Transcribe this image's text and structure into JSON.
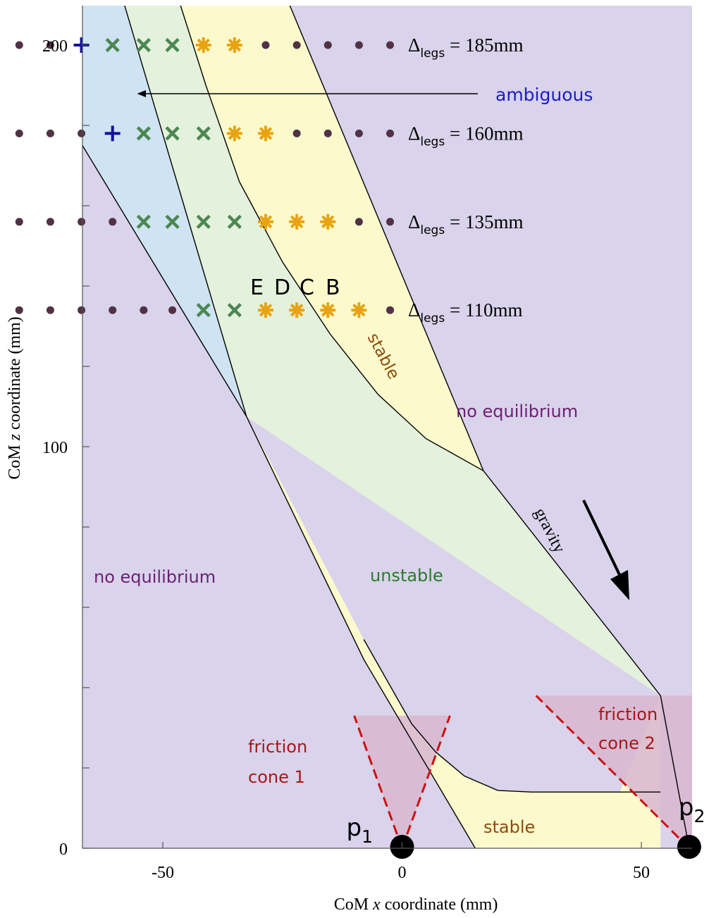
{
  "chart_data": {
    "type": "scatter",
    "xlabel_prefix": "CoM ",
    "xlabel_var": "x",
    "xlabel_suffix": " coordinate (mm)",
    "ylabel_prefix": "CoM ",
    "ylabel_var": "z",
    "ylabel_suffix": " coordinate (mm)",
    "xlim": [
      -80,
      72
    ],
    "ylim": [
      0,
      220
    ],
    "x_ticks": [
      -50,
      0,
      50
    ],
    "y_ticks": [
      0,
      100,
      200
    ],
    "y_minor_ticks": [
      20,
      40,
      60,
      80,
      120,
      140,
      160,
      180
    ],
    "x_tick_labels": [
      "-50",
      "0",
      "50"
    ],
    "y_tick_labels": [
      "0",
      "100",
      "200"
    ],
    "colors": {
      "background": "#d9d3eb",
      "ambiguous_region": "#cfe3f3",
      "unstable_region": "#e4f1dc",
      "stable_region": "#fcfacd",
      "friction_cone": "#d8b6d0",
      "friction_cone_edge": "#cc1111",
      "dot": "#513245",
      "plus": "#11119a",
      "cross": "#4c8751",
      "star": "#e8a312"
    },
    "series": [
      {
        "label_prefix": "Δ",
        "label_sub": "legs",
        "label_eq": " = ",
        "label_value": "185mm",
        "z": 200,
        "points": [
          {
            "x": -80,
            "m": "dot"
          },
          {
            "x": -73.5,
            "m": "dot"
          },
          {
            "x": -67,
            "m": "plus"
          },
          {
            "x": -60.5,
            "m": "cross"
          },
          {
            "x": -54,
            "m": "cross"
          },
          {
            "x": -48,
            "m": "cross"
          },
          {
            "x": -41.5,
            "m": "star"
          },
          {
            "x": -35,
            "m": "star"
          },
          {
            "x": -28.5,
            "m": "dot"
          },
          {
            "x": -22,
            "m": "dot"
          },
          {
            "x": -15.5,
            "m": "dot"
          },
          {
            "x": -9,
            "m": "dot"
          },
          {
            "x": -2.5,
            "m": "dot"
          }
        ]
      },
      {
        "label_prefix": "Δ",
        "label_sub": "legs",
        "label_eq": " = ",
        "label_value": "160mm",
        "z": 178,
        "points": [
          {
            "x": -80,
            "m": "dot"
          },
          {
            "x": -73.5,
            "m": "dot"
          },
          {
            "x": -67,
            "m": "dot"
          },
          {
            "x": -60.5,
            "m": "plus"
          },
          {
            "x": -54,
            "m": "cross"
          },
          {
            "x": -48,
            "m": "cross"
          },
          {
            "x": -41.5,
            "m": "cross"
          },
          {
            "x": -35,
            "m": "star"
          },
          {
            "x": -28.5,
            "m": "star"
          },
          {
            "x": -22,
            "m": "dot"
          },
          {
            "x": -15.5,
            "m": "dot"
          },
          {
            "x": -9,
            "m": "dot"
          },
          {
            "x": -2.5,
            "m": "dot"
          }
        ]
      },
      {
        "label_prefix": "Δ",
        "label_sub": "legs",
        "label_eq": " = ",
        "label_value": "135mm",
        "z": 156,
        "points": [
          {
            "x": -80,
            "m": "dot"
          },
          {
            "x": -73.5,
            "m": "dot"
          },
          {
            "x": -67,
            "m": "dot"
          },
          {
            "x": -60.5,
            "m": "dot"
          },
          {
            "x": -54,
            "m": "cross"
          },
          {
            "x": -48,
            "m": "cross"
          },
          {
            "x": -41.5,
            "m": "cross"
          },
          {
            "x": -35,
            "m": "cross"
          },
          {
            "x": -28.5,
            "m": "star"
          },
          {
            "x": -22,
            "m": "star"
          },
          {
            "x": -15.5,
            "m": "star"
          },
          {
            "x": -9,
            "m": "dot"
          },
          {
            "x": -2.5,
            "m": "dot"
          }
        ]
      },
      {
        "label_prefix": "Δ",
        "label_sub": "legs",
        "label_eq": " = ",
        "label_value": "110mm",
        "z": 134,
        "points": [
          {
            "x": -80,
            "m": "dot"
          },
          {
            "x": -73.5,
            "m": "dot"
          },
          {
            "x": -67,
            "m": "dot"
          },
          {
            "x": -60.5,
            "m": "dot"
          },
          {
            "x": -54,
            "m": "dot"
          },
          {
            "x": -48,
            "m": "dot"
          },
          {
            "x": -41.5,
            "m": "cross"
          },
          {
            "x": -35,
            "m": "cross"
          },
          {
            "x": -28.5,
            "m": "star"
          },
          {
            "x": -22,
            "m": "star"
          },
          {
            "x": -15.5,
            "m": "star"
          },
          {
            "x": -9,
            "m": "star"
          },
          {
            "x": -2.5,
            "m": "dot"
          }
        ]
      }
    ],
    "regions": [
      {
        "name": "ambiguous-region",
        "color_key": "ambiguous_region",
        "polygon": [
          [
            -80,
            209
          ],
          [
            -60.5,
            220
          ],
          [
            -32.5,
            107.5
          ],
          [
            -80,
            201
          ]
        ]
      },
      {
        "name": "unstable-region",
        "color_key": "unstable_region",
        "polygon": [
          [
            -60.5,
            220
          ],
          [
            -49,
            220
          ],
          [
            -41,
            190
          ],
          [
            -34,
            166
          ],
          [
            -25,
            146
          ],
          [
            -15,
            128
          ],
          [
            -5,
            113
          ],
          [
            5,
            102
          ],
          [
            17,
            94
          ],
          [
            54,
            38
          ],
          [
            -32.5,
            107.5
          ]
        ]
      },
      {
        "name": "stable-region-upper",
        "color_key": "stable_region",
        "polygon": [
          [
            -49,
            220
          ],
          [
            -27,
            220
          ],
          [
            17,
            94
          ],
          [
            5,
            102
          ],
          [
            -5,
            113
          ],
          [
            -15,
            128
          ],
          [
            -25,
            146
          ],
          [
            -34,
            166
          ],
          [
            -41,
            190
          ]
        ]
      },
      {
        "name": "stable-region-lower",
        "color_key": "stable_region",
        "polygon": [
          [
            54,
            38
          ],
          [
            45.5,
            14
          ],
          [
            27,
            14
          ],
          [
            20,
            14.4
          ],
          [
            13,
            18
          ],
          [
            7,
            24
          ],
          [
            2,
            31
          ],
          [
            -8,
            52
          ],
          [
            -32.5,
            107.5
          ],
          [
            -8,
            47
          ],
          [
            15.3,
            0
          ],
          [
            54,
            0
          ]
        ]
      },
      {
        "name": "friction-cone-1-region",
        "color_key": "friction_cone",
        "polygon": [
          [
            0,
            0
          ],
          [
            -10,
            33
          ],
          [
            10,
            33
          ]
        ]
      },
      {
        "name": "friction-cone-2-region",
        "color_key": "friction_cone",
        "polygon": [
          [
            60,
            0
          ],
          [
            28,
            38
          ],
          [
            72,
            38
          ],
          [
            72,
            0
          ]
        ]
      }
    ],
    "boundaries": [
      {
        "name": "ambiguous-outer-boundary",
        "points": [
          [
            -80,
            201
          ],
          [
            -32.5,
            107.5
          ],
          [
            -8,
            47
          ],
          [
            15.3,
            0
          ]
        ]
      },
      {
        "name": "ambiguous-inner-boundary",
        "points": [
          [
            -60.5,
            220
          ],
          [
            -32.5,
            107.5
          ]
        ]
      },
      {
        "name": "unstable-stable-upper-boundary",
        "points": [
          [
            -49,
            220
          ],
          [
            -41,
            190
          ],
          [
            -34,
            166
          ],
          [
            -25,
            146
          ],
          [
            -15,
            128
          ],
          [
            -5,
            113
          ],
          [
            5,
            102
          ],
          [
            17,
            94
          ]
        ]
      },
      {
        "name": "no-equilibrium-right-boundary",
        "points": [
          [
            -27,
            220
          ],
          [
            17,
            94
          ],
          [
            54,
            38
          ],
          [
            60,
            0
          ]
        ]
      },
      {
        "name": "lower-stable-boundary",
        "points": [
          [
            -8,
            52
          ],
          [
            2,
            31
          ],
          [
            7,
            24
          ],
          [
            13,
            18
          ],
          [
            20,
            14.4
          ],
          [
            27,
            14
          ],
          [
            54,
            14
          ]
        ]
      }
    ],
    "cone_edges": [
      {
        "name": "cone-1-left-edge",
        "points": [
          [
            0,
            0
          ],
          [
            -10,
            33
          ]
        ]
      },
      {
        "name": "cone-1-right-edge",
        "points": [
          [
            0,
            0
          ],
          [
            10,
            33
          ]
        ]
      },
      {
        "name": "cone-2-left-edge",
        "points": [
          [
            60,
            0
          ],
          [
            28,
            38
          ]
        ]
      },
      {
        "name": "cone-2-right-edge",
        "points": [
          [
            60,
            0
          ],
          [
            72,
            15
          ]
        ]
      }
    ],
    "contacts": [
      {
        "name": "p1",
        "x": 0,
        "z": 0,
        "label": "p",
        "sub": "1"
      },
      {
        "name": "p2",
        "x": 60,
        "z": 0,
        "label": "p",
        "sub": "2"
      }
    ],
    "annotations": {
      "ambiguous": "ambiguous",
      "no_equilibrium_left": "no equilibrium",
      "no_equilibrium_right": "no equilibrium",
      "unstable": "unstable",
      "stable_upper": "stable",
      "stable_lower": "stable",
      "gravity": "gravity",
      "friction_cone_1_line1": "friction",
      "friction_cone_1_line2": "cone 1",
      "friction_cone_2_line1": "friction",
      "friction_cone_2_line2": "cone 2",
      "point_E": "E",
      "point_D": "D",
      "point_C": "C",
      "point_B": "B"
    }
  }
}
